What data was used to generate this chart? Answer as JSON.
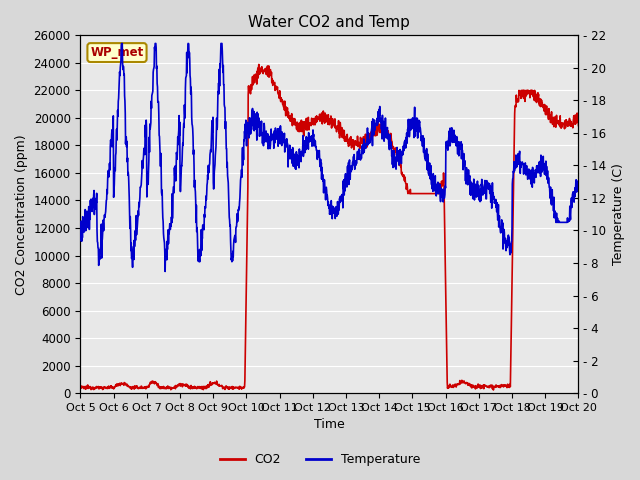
{
  "title": "Water CO2 and Temp",
  "xlabel": "Time",
  "ylabel_left": "CO2 Concentration (ppm)",
  "ylabel_right": "Temperature (C)",
  "co2_ylim": [
    0,
    26000
  ],
  "temp_ylim": [
    0,
    22
  ],
  "co2_yticks": [
    0,
    2000,
    4000,
    6000,
    8000,
    10000,
    12000,
    14000,
    16000,
    18000,
    20000,
    22000,
    24000,
    26000
  ],
  "temp_yticks": [
    0,
    2,
    4,
    6,
    8,
    10,
    12,
    14,
    16,
    18,
    20,
    22
  ],
  "x_tick_labels": [
    "Oct 5",
    "Oct 6",
    "Oct 7",
    "Oct 8",
    "Oct 9",
    "Oct 10",
    "Oct 11",
    "Oct 12",
    "Oct 13",
    "Oct 14",
    "Oct 15",
    "Oct 16",
    "Oct 17",
    "Oct 18",
    "Oct 19",
    "Oct 20"
  ],
  "co2_color": "#cc0000",
  "temp_color": "#0000cc",
  "fig_bg_color": "#d8d8d8",
  "plot_bg_color": "#e8e8e8",
  "label_box_facecolor": "#ffffcc",
  "label_box_edgecolor": "#aa8800",
  "label_text": "WP_met",
  "label_text_color": "#aa0000",
  "legend_co2_label": "CO2",
  "legend_temp_label": "Temperature",
  "title_fontsize": 11,
  "axis_label_fontsize": 9,
  "tick_fontsize": 8.5,
  "line_width": 1.2
}
